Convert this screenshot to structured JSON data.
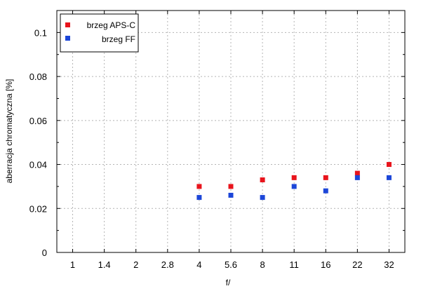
{
  "chart_data": {
    "type": "scatter",
    "xlabel": "f/",
    "ylabel": "aberracja chromatyczna [%]",
    "categories": [
      "1",
      "1.4",
      "2",
      "2.8",
      "4",
      "5.6",
      "8",
      "11",
      "16",
      "22",
      "32"
    ],
    "ylim": [
      0,
      0.11
    ],
    "yticks": [
      0,
      0.02,
      0.04,
      0.06,
      0.08,
      0.1
    ],
    "y_tick_labels": [
      "0",
      "0.02",
      "0.04",
      "0.06",
      "0.08",
      "0.1"
    ],
    "grid": true,
    "legend_position": "top-left",
    "series": [
      {
        "name": "brzeg APS-C",
        "color": "#e8141c",
        "x": [
          "4",
          "5.6",
          "8",
          "11",
          "16",
          "22",
          "32"
        ],
        "values": [
          0.03,
          0.03,
          0.033,
          0.034,
          0.034,
          0.036,
          0.04
        ]
      },
      {
        "name": "brzeg FF",
        "color": "#1c46d8",
        "x": [
          "4",
          "5.6",
          "8",
          "11",
          "16",
          "22",
          "32"
        ],
        "values": [
          0.025,
          0.026,
          0.025,
          0.03,
          0.028,
          0.034,
          0.034
        ]
      }
    ]
  }
}
